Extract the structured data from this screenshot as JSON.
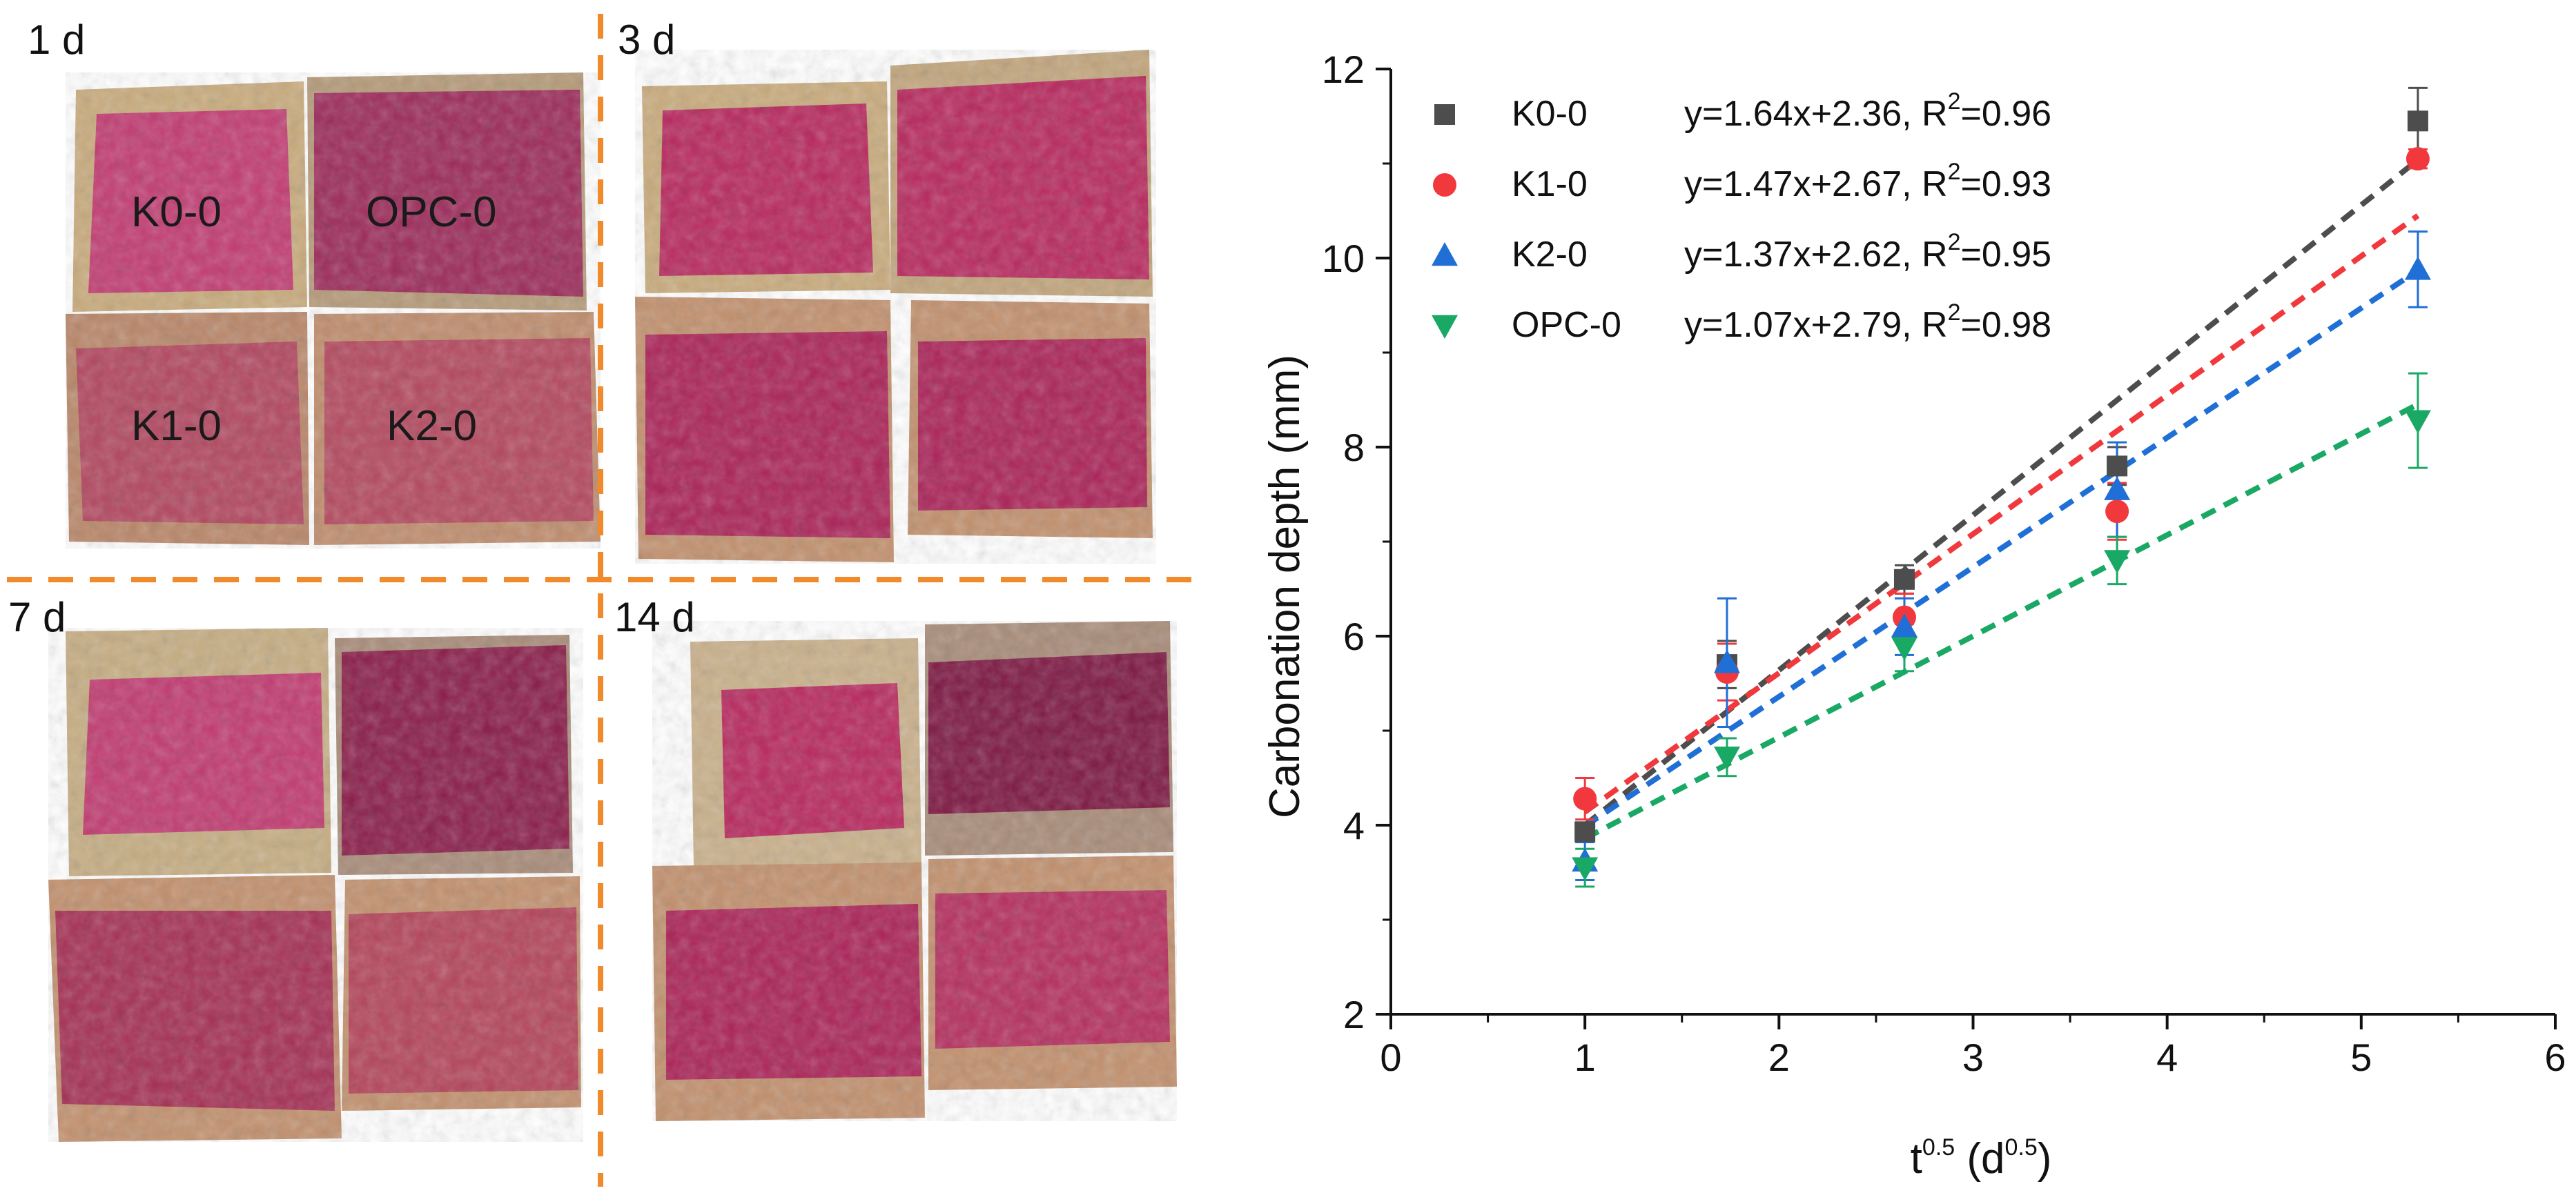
{
  "photo_panels": [
    {
      "label": "1 d",
      "samples": [
        "K0-0",
        "OPC-0",
        "K1-0",
        "K2-0"
      ]
    },
    {
      "label": "3 d",
      "samples": []
    },
    {
      "label": "7 d",
      "samples": []
    },
    {
      "label": "14 d",
      "samples": []
    }
  ],
  "colors": {
    "divider": "#f08a2a",
    "K0-0": "#4d4d4d",
    "K1-0": "#f0383d",
    "K2-0": "#1f6fd6",
    "OPC-0": "#1aa865",
    "stone": "#c8aa7a",
    "stain_light": "#c4386e",
    "stain_dark": "#8e1f4e"
  },
  "chart_data": {
    "type": "scatter",
    "xlabel_base": "t",
    "xlabel_sup": "0.5",
    "xlabel_unit_base": " (d",
    "xlabel_unit_sup": "0.5",
    "xlabel_unit_close": ")",
    "ylabel": "Carbonation depth (mm)",
    "xlim": [
      0,
      6
    ],
    "ylim": [
      2,
      12
    ],
    "xticks": [
      "0",
      "1",
      "2",
      "3",
      "4",
      "5",
      "6"
    ],
    "yticks": [
      "2",
      "4",
      "6",
      "8",
      "10",
      "12"
    ],
    "legend_placement": "top-left",
    "series": [
      {
        "name": "K0-0",
        "marker": "square",
        "x": [
          1,
          1.732,
          2.646,
          3.742,
          5.292
        ],
        "y": [
          3.93,
          5.7,
          6.6,
          7.8,
          11.45
        ],
        "err": [
          0.1,
          0.25,
          0.15,
          0.2,
          0.35
        ],
        "fit_label": "y=1.64x+2.36, R",
        "r2_sup": "2",
        "r2_val": "=0.96",
        "fit": {
          "slope": 1.64,
          "intercept": 2.36
        }
      },
      {
        "name": "K1-0",
        "marker": "circle",
        "x": [
          1,
          1.732,
          2.646,
          3.742,
          5.292
        ],
        "y": [
          4.28,
          5.62,
          6.2,
          7.32,
          11.05
        ],
        "err": [
          0.22,
          0.3,
          0.25,
          0.3,
          0.1
        ],
        "fit_label": "y=1.47x+2.67, R",
        "r2_sup": "2",
        "r2_val": "=0.93",
        "fit": {
          "slope": 1.47,
          "intercept": 2.67
        }
      },
      {
        "name": "K2-0",
        "marker": "triangle-up",
        "x": [
          1,
          1.732,
          2.646,
          3.742,
          5.292
        ],
        "y": [
          3.62,
          5.72,
          6.1,
          7.55,
          9.88
        ],
        "err": [
          0.2,
          0.68,
          0.3,
          0.5,
          0.4
        ],
        "fit_label": "y=1.37x+2.62, R",
        "r2_sup": "2",
        "r2_val": "=0.95",
        "fit": {
          "slope": 1.37,
          "intercept": 2.62
        }
      },
      {
        "name": "OPC-0",
        "marker": "triangle-down",
        "x": [
          1,
          1.732,
          2.646,
          3.742,
          5.292
        ],
        "y": [
          3.55,
          4.72,
          5.88,
          6.8,
          8.28
        ],
        "err": [
          0.2,
          0.2,
          0.25,
          0.25,
          0.5
        ],
        "fit_label": "y=1.07x+2.79, R",
        "r2_sup": "2",
        "r2_val": "=0.98",
        "fit": {
          "slope": 1.07,
          "intercept": 2.79
        }
      }
    ]
  }
}
